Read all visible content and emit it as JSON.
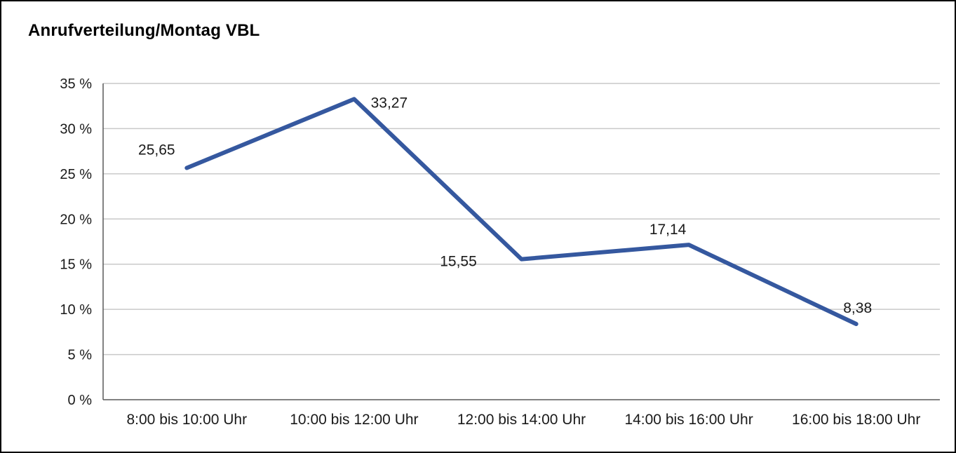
{
  "title": "Anrufverteilung/Montag VBL",
  "chart_data": {
    "type": "line",
    "title": "Anrufverteilung/Montag VBL",
    "categories": [
      "8:00 bis 10:00 Uhr",
      "10:00 bis 12:00 Uhr",
      "12:00 bis 14:00 Uhr",
      "14:00 bis 16:00 Uhr",
      "16:00 bis 18:00 Uhr"
    ],
    "values": [
      25.65,
      33.27,
      15.55,
      17.14,
      8.38
    ],
    "data_labels": [
      "25,65",
      "33,27",
      "15,55",
      "17,14",
      "8,38"
    ],
    "xlabel": "",
    "ylabel": "",
    "ylim": [
      0,
      35
    ],
    "ytick_step": 5,
    "ytick_labels": [
      "0 %",
      "5 %",
      "10 %",
      "15 %",
      "20 %",
      "25 %",
      "30 %",
      "35 %"
    ],
    "grid": true,
    "legend": "none",
    "line_color": "#35589f",
    "grid_color": "#c9c9c9",
    "axis_color": "#595959",
    "text_color": "#1a1a1a"
  }
}
